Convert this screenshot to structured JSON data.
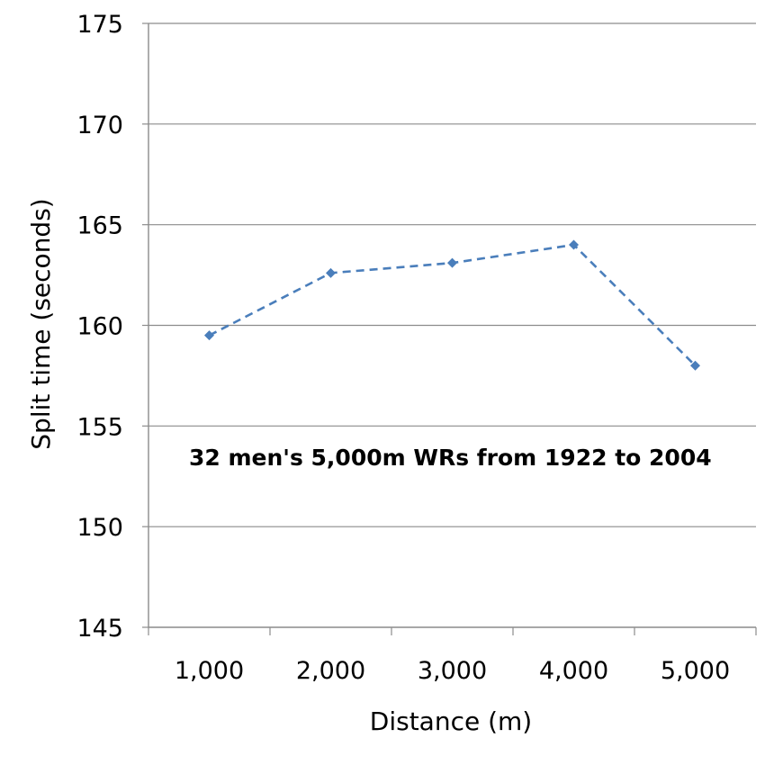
{
  "chart_data": {
    "type": "line",
    "title": "",
    "xlabel": "Distance (m)",
    "ylabel": "Split time (seconds)",
    "categories": [
      "1,000",
      "2,000",
      "3,000",
      "4,000",
      "5,000"
    ],
    "series": [
      {
        "values": [
          159.5,
          162.6,
          163.1,
          164.0,
          158.0
        ],
        "color": "#4a7ebb",
        "line_style": "dashed",
        "marker": "diamond"
      }
    ],
    "ylim": [
      145,
      175
    ],
    "yticks": [
      145,
      150,
      155,
      160,
      165,
      170,
      175
    ],
    "grid": true,
    "legend": "none",
    "annotations": [
      "32 men's 5,000m WRs from 1922 to 2004"
    ]
  }
}
